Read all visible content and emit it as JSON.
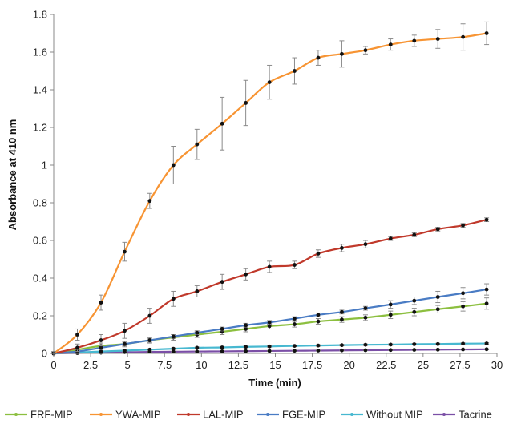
{
  "chart_data": {
    "type": "line",
    "title": "",
    "xlabel": "Time (min)",
    "ylabel": "Absorbance at 410 nm",
    "xlim": [
      0,
      30
    ],
    "ylim": [
      0,
      1.8
    ],
    "x_ticks": [
      "0",
      "2.5",
      "5",
      "7.5",
      "10",
      "12.5",
      "15",
      "17.5",
      "20",
      "22.5",
      "25",
      "27.5",
      "30"
    ],
    "y_ticks": [
      "0",
      "0.2",
      "0.4",
      "0.6",
      "0.8",
      "1",
      "1.2",
      "1.4",
      "1.6",
      "1.8"
    ],
    "grid": false,
    "legend_position": "bottom",
    "x": [
      0,
      1.6,
      3.2,
      4.8,
      6.5,
      8.1,
      9.7,
      11.4,
      13.0,
      14.6,
      16.3,
      17.9,
      19.5,
      21.1,
      22.8,
      24.4,
      26.0,
      27.7,
      29.3
    ],
    "series": [
      {
        "name": "FRF-MIP",
        "color": "#8cbf3f",
        "marker_values": [
          0.0,
          0.02,
          0.04,
          0.05,
          0.07,
          0.085,
          0.1,
          0.115,
          0.13,
          0.145,
          0.155,
          0.17,
          0.18,
          0.19,
          0.205,
          0.22,
          0.235,
          0.25,
          0.265
        ],
        "errors": [
          0.005,
          0.01,
          0.015,
          0.015,
          0.015,
          0.015,
          0.015,
          0.015,
          0.015,
          0.015,
          0.015,
          0.015,
          0.015,
          0.015,
          0.02,
          0.02,
          0.02,
          0.025,
          0.03
        ]
      },
      {
        "name": "YWA-MIP",
        "color": "#f79433",
        "marker_values": [
          0.0,
          0.1,
          0.27,
          0.54,
          0.81,
          1.0,
          1.11,
          1.22,
          1.33,
          1.44,
          1.5,
          1.57,
          1.59,
          1.61,
          1.64,
          1.66,
          1.67,
          1.68,
          1.7
        ],
        "errors": [
          0.01,
          0.03,
          0.04,
          0.05,
          0.04,
          0.1,
          0.08,
          0.14,
          0.12,
          0.09,
          0.07,
          0.04,
          0.07,
          0.02,
          0.03,
          0.03,
          0.05,
          0.07,
          0.06
        ]
      },
      {
        "name": "LAL-MIP",
        "color": "#c0392b",
        "marker_values": [
          0.0,
          0.03,
          0.07,
          0.12,
          0.2,
          0.29,
          0.33,
          0.38,
          0.42,
          0.46,
          0.47,
          0.53,
          0.56,
          0.58,
          0.61,
          0.63,
          0.66,
          0.68,
          0.71
        ],
        "errors": [
          0.005,
          0.02,
          0.03,
          0.04,
          0.04,
          0.04,
          0.03,
          0.04,
          0.03,
          0.03,
          0.02,
          0.02,
          0.02,
          0.02,
          0.01,
          0.01,
          0.01,
          0.01,
          0.01
        ]
      },
      {
        "name": "FGE-MIP",
        "color": "#4a7cc4",
        "marker_values": [
          0.0,
          0.01,
          0.03,
          0.05,
          0.07,
          0.09,
          0.11,
          0.13,
          0.15,
          0.165,
          0.185,
          0.205,
          0.22,
          0.24,
          0.26,
          0.28,
          0.3,
          0.32,
          0.34
        ],
        "errors": [
          0.005,
          0.01,
          0.01,
          0.01,
          0.01,
          0.01,
          0.01,
          0.01,
          0.01,
          0.01,
          0.01,
          0.01,
          0.01,
          0.01,
          0.02,
          0.02,
          0.03,
          0.03,
          0.03
        ]
      },
      {
        "name": "Without MIP",
        "color": "#47b8d0",
        "marker_values": [
          0.0,
          0.005,
          0.01,
          0.015,
          0.02,
          0.025,
          0.03,
          0.032,
          0.035,
          0.037,
          0.04,
          0.042,
          0.044,
          0.046,
          0.047,
          0.049,
          0.05,
          0.052,
          0.053
        ],
        "errors": [
          0.002,
          0.003,
          0.003,
          0.003,
          0.004,
          0.004,
          0.004,
          0.004,
          0.004,
          0.004,
          0.004,
          0.004,
          0.004,
          0.004,
          0.004,
          0.004,
          0.004,
          0.004,
          0.004
        ]
      },
      {
        "name": "Tacrine",
        "color": "#7b4fa6",
        "marker_values": [
          0.0,
          0.002,
          0.004,
          0.006,
          0.008,
          0.009,
          0.01,
          0.011,
          0.012,
          0.013,
          0.014,
          0.015,
          0.016,
          0.017,
          0.018,
          0.019,
          0.02,
          0.021,
          0.022
        ],
        "errors": [
          0.002,
          0.002,
          0.002,
          0.002,
          0.002,
          0.002,
          0.002,
          0.002,
          0.002,
          0.002,
          0.002,
          0.002,
          0.002,
          0.002,
          0.002,
          0.002,
          0.002,
          0.002,
          0.002
        ]
      }
    ]
  }
}
